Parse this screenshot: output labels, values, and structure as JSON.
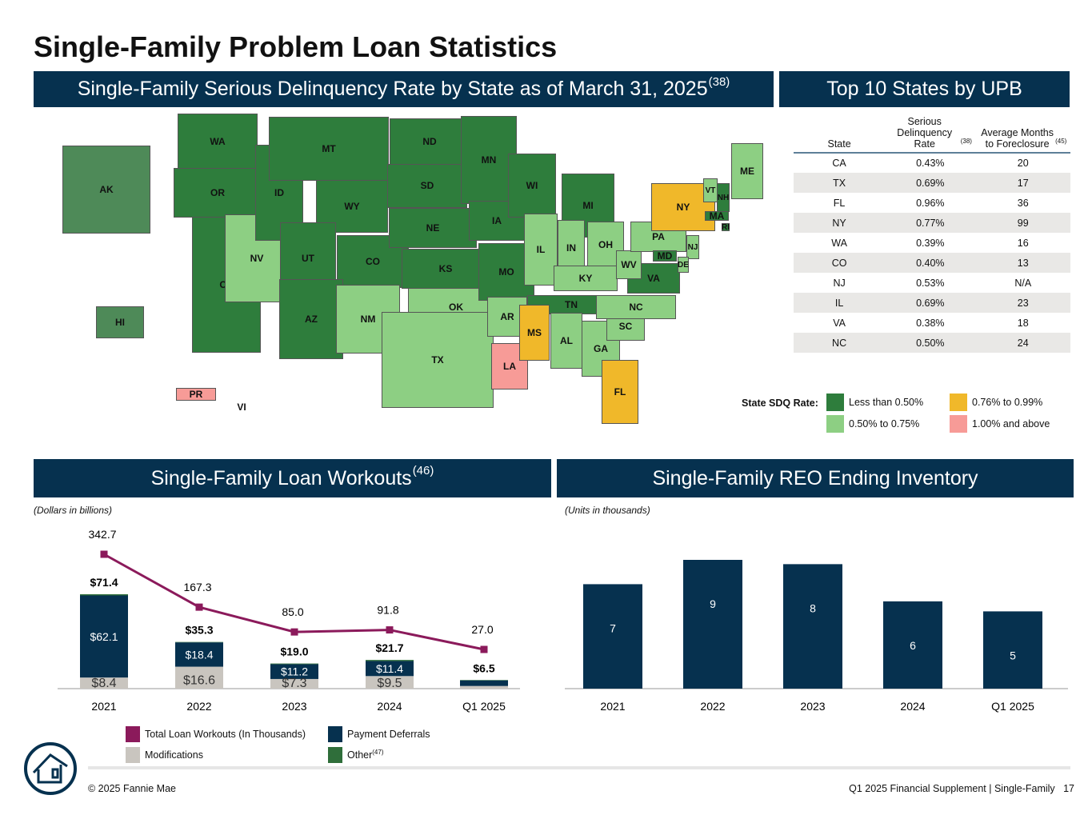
{
  "title": "Single-Family Problem Loan Statistics",
  "map_section": {
    "title": "Single-Family Serious Delinquency Rate by State as of March 31, 2025",
    "sup": "(38)"
  },
  "colors": {
    "dark_green": "#2e7d3c",
    "light_green": "#8dcf83",
    "yellow": "#f0b82a",
    "pink": "#f79b97",
    "navy": "#06314f",
    "magenta": "#8b1a5b",
    "gray": "#c9c5bf",
    "other_green": "#2f6e3a"
  },
  "states": [
    {
      "s": "WA",
      "c": "dark"
    },
    {
      "s": "OR",
      "c": "dark"
    },
    {
      "s": "CA",
      "c": "dark"
    },
    {
      "s": "NV",
      "c": "light"
    },
    {
      "s": "ID",
      "c": "dark"
    },
    {
      "s": "MT",
      "c": "dark"
    },
    {
      "s": "WY",
      "c": "dark"
    },
    {
      "s": "UT",
      "c": "dark"
    },
    {
      "s": "CO",
      "c": "dark"
    },
    {
      "s": "AZ",
      "c": "dark"
    },
    {
      "s": "NM",
      "c": "light"
    },
    {
      "s": "ND",
      "c": "dark"
    },
    {
      "s": "SD",
      "c": "dark"
    },
    {
      "s": "NE",
      "c": "dark"
    },
    {
      "s": "KS",
      "c": "dark"
    },
    {
      "s": "OK",
      "c": "light"
    },
    {
      "s": "TX",
      "c": "light"
    },
    {
      "s": "MN",
      "c": "dark"
    },
    {
      "s": "IA",
      "c": "dark"
    },
    {
      "s": "MO",
      "c": "dark"
    },
    {
      "s": "AR",
      "c": "light"
    },
    {
      "s": "LA",
      "c": "pink"
    },
    {
      "s": "WI",
      "c": "dark"
    },
    {
      "s": "IL",
      "c": "light"
    },
    {
      "s": "MI",
      "c": "dark"
    },
    {
      "s": "IN",
      "c": "light"
    },
    {
      "s": "OH",
      "c": "light"
    },
    {
      "s": "KY",
      "c": "light"
    },
    {
      "s": "TN",
      "c": "dark"
    },
    {
      "s": "MS",
      "c": "yellow"
    },
    {
      "s": "AL",
      "c": "light"
    },
    {
      "s": "GA",
      "c": "light"
    },
    {
      "s": "FL",
      "c": "yellow"
    },
    {
      "s": "SC",
      "c": "light"
    },
    {
      "s": "NC",
      "c": "light"
    },
    {
      "s": "VA",
      "c": "dark"
    },
    {
      "s": "WV",
      "c": "light"
    },
    {
      "s": "PA",
      "c": "light"
    },
    {
      "s": "NY",
      "c": "yellow"
    },
    {
      "s": "NJ",
      "c": "light"
    },
    {
      "s": "DE",
      "c": "light"
    },
    {
      "s": "MD",
      "c": "dark"
    },
    {
      "s": "VT",
      "c": "light"
    },
    {
      "s": "NH",
      "c": "dark"
    },
    {
      "s": "ME",
      "c": "light"
    },
    {
      "s": "MA",
      "c": "dark"
    },
    {
      "s": "RI",
      "c": "dark"
    },
    {
      "s": "AK",
      "c": "dark"
    },
    {
      "s": "HI",
      "c": "dark"
    },
    {
      "s": "PR",
      "c": "pink"
    },
    {
      "s": "VI",
      "c": "none"
    }
  ],
  "legend": {
    "title": "State SDQ Rate:",
    "items": [
      "Less than 0.50%",
      "0.50% to 0.75%",
      "0.76% to 0.99%",
      "1.00% and above"
    ]
  },
  "top10": {
    "title": "Top 10 States by UPB",
    "headers": [
      "State",
      "Serious Delinquency Rate",
      "(38)",
      "Average Months to Foreclosure",
      "(45)"
    ],
    "rows": [
      [
        "CA",
        "0.43%",
        "20"
      ],
      [
        "TX",
        "0.69%",
        "17"
      ],
      [
        "FL",
        "0.96%",
        "36"
      ],
      [
        "NY",
        "0.77%",
        "99"
      ],
      [
        "WA",
        "0.39%",
        "16"
      ],
      [
        "CO",
        "0.40%",
        "13"
      ],
      [
        "NJ",
        "0.53%",
        "N/A"
      ],
      [
        "IL",
        "0.69%",
        "23"
      ],
      [
        "VA",
        "0.38%",
        "18"
      ],
      [
        "NC",
        "0.50%",
        "24"
      ]
    ]
  },
  "workouts": {
    "title": "Single-Family Loan Workouts",
    "sup": "(46)",
    "note": "(Dollars in billions)",
    "chart_data": {
      "type": "bar",
      "stacked": true,
      "categories": [
        "2021",
        "2022",
        "2023",
        "2024",
        "Q1 2025"
      ],
      "series": [
        {
          "name": "Modifications",
          "values": [
            8.4,
            16.6,
            7.3,
            9.5,
            2.0
          ],
          "labels": [
            "$8.4",
            "$16.6",
            "$7.3",
            "$9.5",
            ""
          ]
        },
        {
          "name": "Payment Deferrals",
          "values": [
            62.1,
            18.4,
            11.2,
            11.4,
            4.3
          ],
          "labels": [
            "$62.1",
            "$18.4",
            "$11.2",
            "$11.4",
            ""
          ]
        },
        {
          "name": "Other",
          "values": [
            0.9,
            0.3,
            0.5,
            0.8,
            0.2
          ]
        }
      ],
      "totals": [
        "$71.4",
        "$35.3",
        "$19.0",
        "$21.7",
        "$6.5"
      ],
      "line": {
        "name": "Total Loan Workouts (In Thousands)",
        "values": [
          342.7,
          167.3,
          85.0,
          91.8,
          27.0
        ],
        "labels": [
          "342.7",
          "167.3",
          "85.0",
          "91.8",
          "27.0"
        ]
      },
      "legend": [
        "Total Loan Workouts (In Thousands)",
        "Payment Deferrals",
        "Modifications",
        "Other"
      ],
      "other_sup": "(47)"
    }
  },
  "reo": {
    "title": "Single-Family REO Ending Inventory",
    "note": "(Units in thousands)",
    "chart_data": {
      "type": "bar",
      "categories": [
        "2021",
        "2022",
        "2023",
        "2024",
        "Q1 2025"
      ],
      "values": [
        7,
        9,
        8,
        6,
        5
      ],
      "labels": [
        "7",
        "9",
        "8",
        "6",
        "5"
      ]
    }
  },
  "footer": {
    "copyright": "© 2025 Fannie Mae",
    "right": "Q1 2025 Financial Supplement | Single-Family",
    "page": "17"
  }
}
